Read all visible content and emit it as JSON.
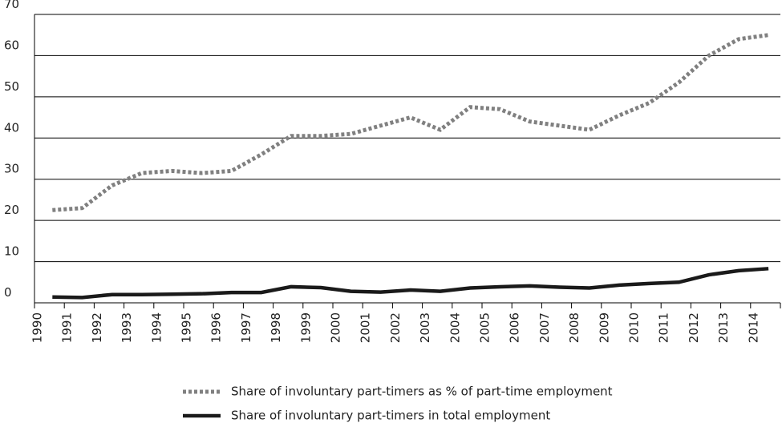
{
  "chart_data": {
    "type": "line",
    "categories": [
      "1990",
      "1991",
      "1992",
      "1993",
      "1994",
      "1995",
      "1996",
      "1997",
      "1998",
      "1999",
      "2000",
      "2001",
      "2002",
      "2003",
      "2004",
      "2005",
      "2006",
      "2007",
      "2008",
      "2009",
      "2010",
      "2011",
      "2012",
      "2013",
      "2014"
    ],
    "series": [
      {
        "name": "Share of involuntary part-timers as % of part-time employment",
        "color": "#808080",
        "style": "dotted",
        "values": [
          22.5,
          23,
          28.5,
          31.5,
          32,
          31.5,
          32,
          36,
          40.5,
          40.5,
          41,
          43,
          45,
          42,
          47.5,
          47,
          44,
          43,
          42,
          45.5,
          48.5,
          53.5,
          60,
          64,
          65
        ]
      },
      {
        "name": "Share of involuntary part-timers in total employment",
        "color": "#1a1a1a",
        "style": "solid",
        "values": [
          1.4,
          1.3,
          2,
          2,
          2.1,
          2.2,
          2.5,
          2.5,
          3.9,
          3.7,
          2.8,
          2.6,
          3.1,
          2.8,
          3.6,
          3.9,
          4.1,
          3.8,
          3.6,
          4.3,
          4.7,
          5,
          6.8,
          7.8,
          8.3
        ]
      }
    ],
    "ylim": [
      0,
      70
    ],
    "yticks": [
      0,
      10,
      20,
      30,
      40,
      50,
      60,
      70
    ],
    "grid": true
  }
}
